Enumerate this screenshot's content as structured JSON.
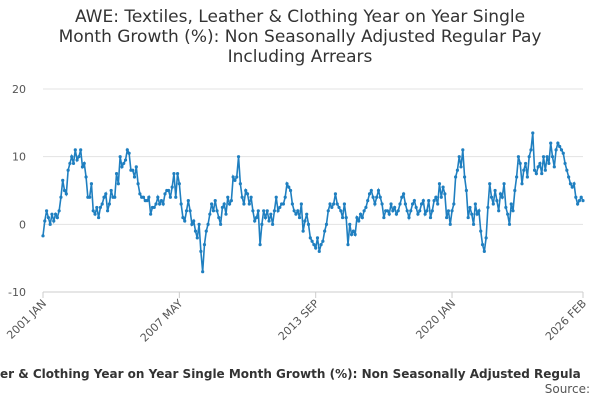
{
  "chart_data": {
    "type": "line",
    "title": [
      "AWE: Textiles, Leather & Clothing Year on Year Single",
      "Month Growth (%): Non Seasonally Adjusted Regular Pay",
      "Including Arrears"
    ],
    "caption": "er & Clothing Year on Year Single Month Growth (%): Non Seasonally Adjusted Regula",
    "source": "Source:",
    "categories": [
      "2001 JAN",
      null,
      null,
      null,
      null,
      null,
      null,
      null,
      null,
      null,
      null,
      null,
      null,
      null,
      null,
      null,
      null,
      null,
      null,
      null,
      null,
      null,
      null,
      null,
      null,
      null,
      null,
      null,
      null,
      null,
      null,
      null,
      null,
      null,
      null,
      null,
      null,
      null,
      null,
      null,
      null,
      null,
      null,
      null,
      null,
      null,
      null,
      null,
      null,
      null,
      null,
      null,
      null,
      null,
      null,
      null,
      null,
      null,
      null,
      null,
      null,
      null,
      null,
      null,
      null,
      null,
      null,
      null,
      null,
      null,
      null,
      null,
      null,
      null,
      null,
      null,
      "2007 MAY",
      null,
      null,
      null,
      null,
      null,
      null,
      null,
      null,
      null,
      null,
      null,
      null,
      null,
      null,
      null,
      null,
      null,
      null,
      null,
      null,
      null,
      null,
      null,
      null,
      null,
      null,
      null,
      null,
      null,
      null,
      null,
      null,
      null,
      null,
      null,
      null,
      null,
      null,
      null,
      null,
      null,
      null,
      null,
      null,
      null,
      null,
      null,
      null,
      null,
      null,
      null,
      null,
      null,
      null,
      null,
      null,
      null,
      null,
      null,
      null,
      null,
      null,
      null,
      null,
      null,
      null,
      null,
      null,
      null,
      null,
      null,
      null,
      null,
      null,
      null,
      "2013 SEP",
      null,
      null,
      null,
      null,
      null,
      null,
      null,
      null,
      null,
      null,
      null,
      null,
      null,
      null,
      null,
      null,
      null,
      null,
      null,
      null,
      null,
      null,
      null,
      null,
      null,
      null,
      null,
      null,
      null,
      null,
      null,
      null,
      null,
      null,
      null,
      null,
      null,
      null,
      null,
      null,
      null,
      null,
      null,
      null,
      null,
      null,
      null,
      null,
      null,
      null,
      null,
      null,
      null,
      null,
      null,
      null,
      null,
      null,
      null,
      null,
      null,
      null,
      null,
      null,
      null,
      null,
      null,
      null,
      null,
      null,
      null,
      null,
      null,
      null,
      null,
      "2020 JAN",
      null,
      null,
      null,
      null,
      null,
      null,
      null,
      null,
      null,
      null,
      null,
      null,
      null,
      null,
      null,
      null,
      null,
      null,
      null,
      null,
      null,
      null,
      null,
      null,
      null,
      null,
      null,
      null,
      null,
      null,
      null,
      null,
      null,
      null,
      null,
      null,
      null,
      null,
      null,
      null,
      null,
      null,
      null,
      null,
      null,
      null,
      null,
      null,
      null,
      null,
      null,
      null,
      null,
      null,
      null,
      null,
      null,
      null,
      null,
      null,
      null,
      null,
      null,
      null,
      null,
      null,
      null,
      null,
      null,
      null,
      null,
      null,
      "2026 FEB"
    ],
    "series": [
      {
        "color": "#1f7fc0",
        "values": [
          -1.7,
          0.5,
          2,
          1,
          0,
          1.5,
          0.5,
          1.5,
          1,
          2,
          4,
          6.5,
          5,
          4.5,
          8,
          9,
          10,
          9,
          11,
          9.5,
          10,
          11,
          8.5,
          9,
          7,
          4,
          4,
          6,
          2,
          1.5,
          2.5,
          1,
          2.5,
          3,
          4,
          4.5,
          2,
          3,
          5,
          4,
          4,
          7.5,
          6,
          10,
          8.5,
          9,
          9.5,
          11,
          10.5,
          8,
          8,
          7,
          8.5,
          6,
          4.5,
          4,
          4,
          3.5,
          3.5,
          4,
          1.5,
          2.5,
          2.5,
          3,
          4,
          3,
          3.5,
          3,
          4.5,
          5,
          5,
          4,
          5.5,
          7.5,
          4,
          7.5,
          6,
          3,
          1,
          0.5,
          2,
          3.5,
          2,
          0,
          0.5,
          -1,
          -2,
          0,
          -4,
          -7,
          -3,
          -1,
          0,
          1.5,
          3,
          2,
          3.5,
          2,
          1,
          0,
          2.5,
          3,
          1.5,
          4,
          3,
          3.5,
          7,
          6.5,
          7,
          10,
          6,
          4,
          3,
          5,
          4.5,
          3,
          4,
          2,
          0.5,
          1,
          2,
          -3,
          0,
          2,
          1,
          2,
          0.5,
          1.5,
          0,
          2,
          4,
          2,
          2.5,
          3,
          3,
          4,
          6,
          5.5,
          5,
          3,
          2,
          1.5,
          2,
          1,
          3,
          -1,
          0.5,
          1.5,
          0,
          -2,
          -2.5,
          -3,
          -3.5,
          -2,
          -4,
          -3,
          -2.5,
          -1,
          0,
          2,
          3,
          2.5,
          3,
          4.5,
          3,
          2.5,
          2,
          1,
          3,
          1,
          -3,
          0,
          -1.5,
          -1,
          -1.5,
          1,
          0.5,
          1.5,
          1,
          2,
          2.5,
          3.5,
          4.5,
          5,
          4,
          3,
          4,
          5,
          4,
          3,
          1,
          2,
          2,
          1.5,
          3,
          2,
          2.5,
          1.5,
          2,
          3,
          4,
          4.5,
          3,
          2,
          1,
          2,
          3,
          3.5,
          2.5,
          1.5,
          2,
          3,
          3.5,
          1.5,
          2,
          3.5,
          1,
          2,
          3.5,
          4,
          3,
          6,
          4,
          5.5,
          4.5,
          1,
          2,
          0,
          2,
          3,
          7,
          8,
          10,
          8.5,
          11,
          7,
          5,
          1,
          2.5,
          1.5,
          0,
          3,
          1.5,
          2,
          -1,
          -3,
          -4,
          -2,
          2.5,
          6,
          4,
          3,
          5,
          3.5,
          2,
          4.5,
          4,
          6,
          2.5,
          1.5,
          0,
          3,
          2,
          5,
          7,
          10,
          9,
          6,
          8,
          9,
          7,
          10,
          11,
          13.5,
          8,
          7.5,
          8.5,
          9,
          7.5,
          10,
          8,
          10,
          9,
          12,
          10,
          8.5,
          11,
          12,
          11.5,
          11,
          10.5,
          9,
          8,
          7,
          6,
          5.5,
          6,
          4,
          3,
          3.5,
          4,
          3.5
        ]
      }
    ],
    "ylim": [
      -10,
      20
    ],
    "yticks": [
      -10,
      0,
      10,
      20
    ],
    "grid": true
  }
}
